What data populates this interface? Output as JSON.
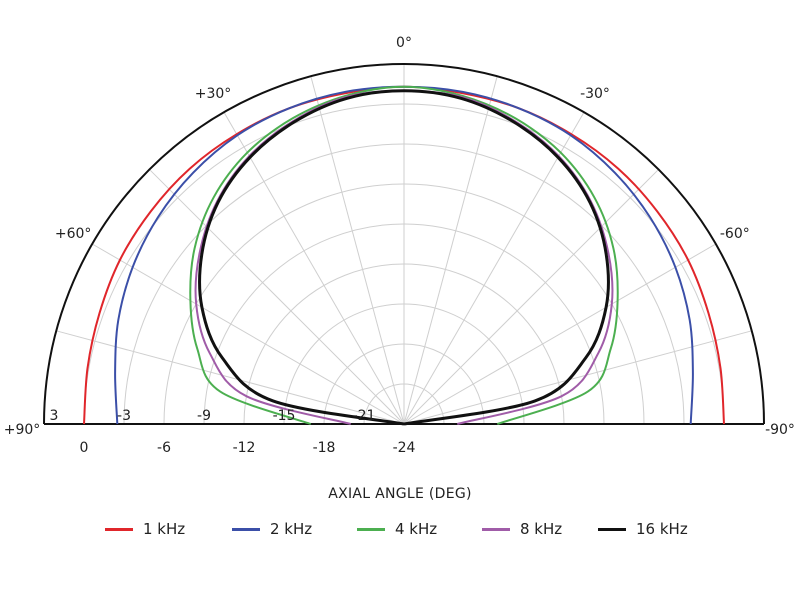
{
  "chart_data": {
    "type": "polar",
    "xlabel": "AXIAL ANGLE (DEG)",
    "angle_labels": [
      {
        "text": "0°",
        "angle": 0
      },
      {
        "text": "+30°",
        "angle": -30
      },
      {
        "text": "-30°",
        "angle": 30
      },
      {
        "text": "+60°",
        "angle": -60
      },
      {
        "text": "-60°",
        "angle": 60
      },
      {
        "text": "+90°",
        "angle": -90
      },
      {
        "text": "-90°",
        "angle": 90
      }
    ],
    "radial_labels_upper": [
      "3",
      "-3",
      "-9",
      "-15",
      "-21"
    ],
    "radial_labels_lower": [
      "0",
      "-6",
      "-12",
      "-18",
      "-24"
    ],
    "rlim_db": [
      -24,
      3
    ],
    "grid": true,
    "angle_ticks_deg": [
      -90,
      -75,
      -60,
      -45,
      -30,
      -15,
      0,
      15,
      30,
      45,
      60,
      75,
      90
    ],
    "angles_deg": [
      -90,
      -80,
      -70,
      -60,
      -50,
      -40,
      -30,
      -20,
      -10,
      0,
      10,
      20,
      30,
      40,
      50,
      60,
      70,
      80,
      90
    ],
    "series": [
      {
        "name": "1 kHz",
        "color": "#e0262b",
        "values": [
          0.0,
          0.1,
          0.3,
          0.6,
          0.8,
          1.0,
          1.1,
          1.2,
          1.2,
          1.3,
          1.2,
          1.2,
          1.1,
          1.0,
          0.8,
          0.6,
          0.3,
          0.1,
          0.0
        ]
      },
      {
        "name": "2 kHz",
        "color": "#3b4fa8",
        "values": [
          -2.5,
          -2.0,
          -1.2,
          -0.5,
          0.1,
          0.6,
          1.0,
          1.2,
          1.3,
          1.3,
          1.3,
          1.2,
          1.0,
          0.6,
          0.1,
          -0.5,
          -1.2,
          -2.0,
          -2.5
        ]
      },
      {
        "name": "4 kHz",
        "color": "#4caf50",
        "values": [
          -17.0,
          -10.0,
          -7.5,
          -5.5,
          -3.5,
          -1.8,
          -0.5,
          0.4,
          1.0,
          1.3,
          1.0,
          0.4,
          -0.5,
          -1.8,
          -3.5,
          -5.5,
          -7.5,
          -10.0,
          -17.0
        ]
      },
      {
        "name": "8 kHz",
        "color": "#a05ca8",
        "values": [
          -20.0,
          -12.0,
          -8.5,
          -6.0,
          -4.0,
          -2.2,
          -0.8,
          0.2,
          0.9,
          1.0,
          0.9,
          0.2,
          -0.8,
          -2.2,
          -4.0,
          -6.0,
          -8.5,
          -12.0,
          -20.0
        ]
      },
      {
        "name": "16 kHz",
        "color": "#111111",
        "values": [
          -24.0,
          -14.0,
          -9.5,
          -6.5,
          -4.2,
          -2.3,
          -0.9,
          0.1,
          0.8,
          1.0,
          0.8,
          0.1,
          -0.9,
          -2.3,
          -4.2,
          -6.5,
          -9.5,
          -14.0,
          -24.0
        ]
      }
    ],
    "legend_position": "bottom"
  }
}
